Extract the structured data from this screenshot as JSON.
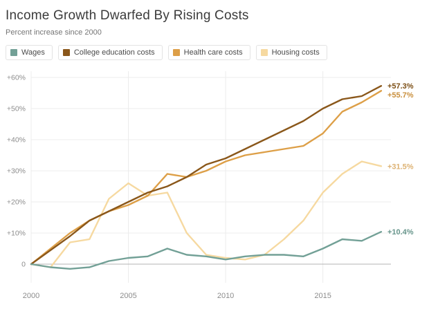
{
  "header": {
    "title": "Income Growth Dwarfed By Rising Costs",
    "subtitle": "Percent increase since 2000"
  },
  "colors": {
    "grid": "#ececec",
    "zero_line": "#b3b3b3",
    "axis_text": "#8c8c8c",
    "background": "#ffffff"
  },
  "chart_data": {
    "type": "line",
    "title": "Income Growth Dwarfed By Rising Costs",
    "subtitle": "Percent increase since 2000",
    "xlabel": "",
    "ylabel": "",
    "grid": true,
    "legend_position": "top",
    "xlim": [
      2000,
      2018.5
    ],
    "ylim": [
      -6,
      62
    ],
    "x": [
      2000,
      2001,
      2002,
      2003,
      2004,
      2005,
      2006,
      2007,
      2008,
      2009,
      2010,
      2011,
      2012,
      2013,
      2014,
      2015,
      2016,
      2017,
      2018
    ],
    "xticks": [
      {
        "v": 2000,
        "label": "2000"
      },
      {
        "v": 2005,
        "label": "2005"
      },
      {
        "v": 2010,
        "label": "2010"
      },
      {
        "v": 2015,
        "label": "2015"
      }
    ],
    "yticks": [
      {
        "v": 0,
        "label": "0"
      },
      {
        "v": 10,
        "label": "+10%"
      },
      {
        "v": 20,
        "label": "+20%"
      },
      {
        "v": 30,
        "label": "+30%"
      },
      {
        "v": 40,
        "label": "+40%"
      },
      {
        "v": 50,
        "label": "+50%"
      },
      {
        "v": 60,
        "label": "+60%"
      }
    ],
    "series": [
      {
        "name": "Wages",
        "slug": "wages",
        "color": "#72a096",
        "label_color": "#67958b",
        "end_label": "+10.4%",
        "values": [
          0,
          -1,
          -1.5,
          -1,
          1,
          2,
          2.5,
          5,
          3,
          2.5,
          1.5,
          2.5,
          3,
          3,
          2.5,
          5,
          8,
          7.5,
          10.4
        ]
      },
      {
        "name": "College education costs",
        "slug": "college-education-costs",
        "color": "#8a571a",
        "label_color": "#7c4e14",
        "end_label": "+57.3%",
        "values": [
          0,
          4.5,
          9,
          14,
          17,
          20,
          23,
          25,
          28,
          32,
          34,
          37,
          40,
          43,
          46,
          50,
          53,
          54,
          57.3
        ]
      },
      {
        "name": "Health care costs",
        "slug": "health-care-costs",
        "color": "#dd9f47",
        "label_color": "#c98f3d",
        "end_label": "+55.7%",
        "values": [
          0,
          5,
          10,
          14,
          17,
          19,
          22,
          29,
          28,
          30,
          33,
          35,
          36,
          37,
          38,
          42,
          49,
          52,
          55.7
        ]
      },
      {
        "name": "Housing costs",
        "slug": "housing-costs",
        "color": "#f6d9a0",
        "label_color": "#ddb273",
        "end_label": "+31.5%",
        "values": [
          0,
          -1,
          7,
          8,
          21,
          26,
          22,
          23,
          10,
          3,
          2,
          1.5,
          3,
          8,
          14,
          23,
          29,
          33,
          31.5
        ]
      }
    ],
    "draw_order": [
      3,
      2,
      1,
      0
    ]
  }
}
